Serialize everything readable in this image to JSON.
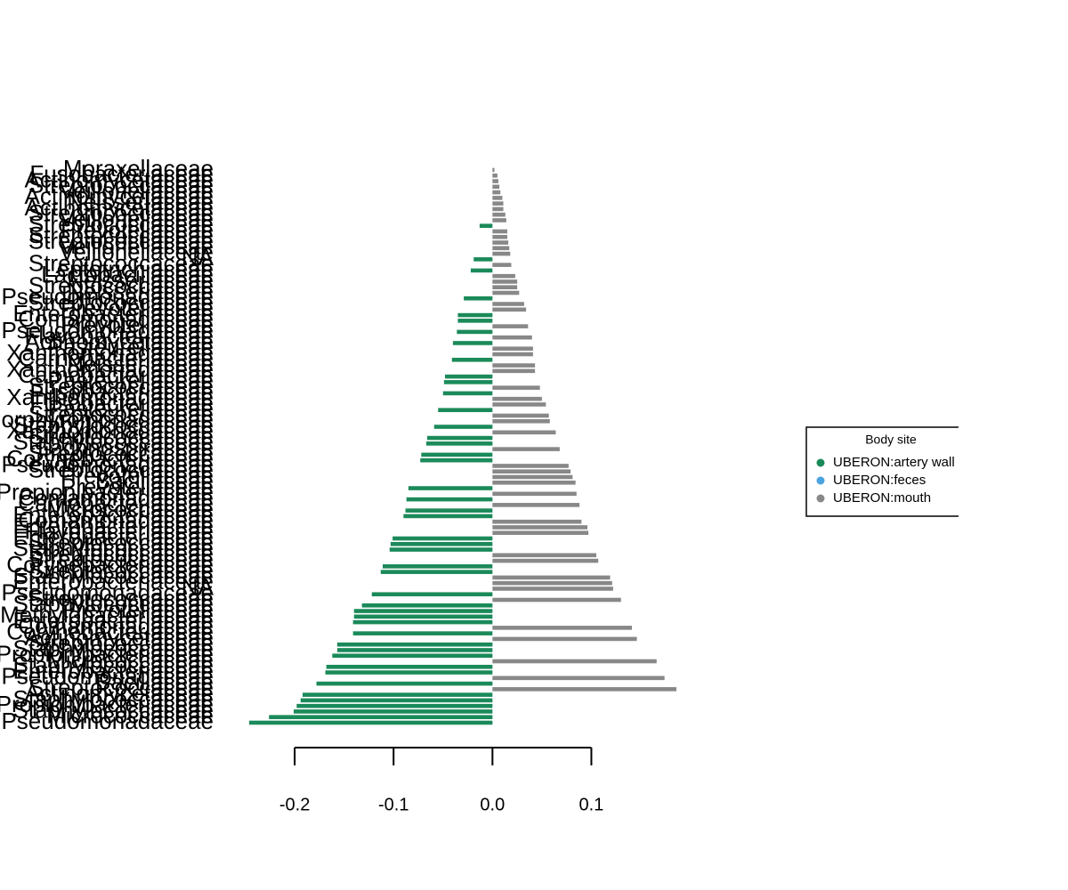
{
  "chart_data": {
    "type": "barh",
    "categories": [
      "Moraxellaceae",
      "Fusobacteriaceae",
      "Actinomycetaceae",
      "Streptococcaceae",
      "Veillonellaceae",
      "Actinomycetaceae",
      "Neisseriaceae",
      "Actinomycetaceae",
      "Streptococcaceae",
      "Veillonellaceae",
      "Streptococcaceae",
      "Prevotellaceae",
      "Streptococcaceae",
      "Streptococcaceae",
      "Veillonellaceae",
      "Veillonellaceae",
      "NA",
      "Streptococcaceae",
      "Leptotrichiaceae",
      "Lactobacillaceae",
      "Neisseriaceae",
      "Streptococcaceae",
      "Neisseriaceae",
      "Pseudomonadaceae",
      "Streptococcaceae",
      "Prevotellaceae",
      "Enterobacteriaceae",
      "Comamonadaceae",
      "Prevotellaceae",
      "Pseudomonadaceae",
      "Flavobacteriaceae",
      "Actinomycetaceae",
      "Pasteurellaceae",
      "Xanthomonadaceae",
      "Carnobacteriaceae",
      "Neisseriaceae",
      "Xanthomonadaceae",
      "Carnobacteriaceae",
      "Pasteurellaceae",
      "Streptococcaceae",
      "Fusobacteriaceae",
      "Xanthomonadaceae",
      "Fusobacteriaceae",
      "Pasteurellaceae",
      "Streptococcaceae",
      "Porphyromonadaceae",
      "Staphylococcaceae",
      "Xanthomonadaceae",
      "Streptococcaceae",
      "Staphylococcaceae",
      "Lachnospiraceae",
      "Streptococcaceae",
      "Corynebacteriaceae",
      "Pseudomonadaceae",
      "Streptococcaceae",
      "Prevotellaceae",
      "Bacillaceae",
      "Prevotellaceae",
      "Propionibacteriaceae",
      "Comamonadaceae",
      "Carnobacteriaceae",
      "Micrococcaceae",
      "Enterobacteriaceae",
      "Comamonadaceae",
      "Enterobacteriaceae",
      "Flavobacteriaceae",
      "Enterobacteriaceae",
      "Streptococcaceae",
      "Staphylococcaceae",
      "Streptococcaceae",
      "Streptococcaceae",
      "Corynebacteriaceae",
      "Streptococcaceae",
      "Staphylococcaceae",
      "Enterobacteriaceae",
      "NA",
      "Pseudomonadaceae",
      "Streptococcaceae",
      "Staphylococcaceae",
      "Prevotellaceae",
      "Methylobacteriaceae",
      "Enterobacteriaceae",
      "Comamonadaceae",
      "Corynebacteriaceae",
      "Actinomycetaceae",
      "Streptococcaceae",
      "Staphylococcaceae",
      "Propionibacteriaceae",
      "Micrococcaceae",
      "Staphylococcaceae",
      "Enterobacteriaceae",
      "Pseudomonadaceae",
      "Bacillaceae",
      "Streptococcaceae",
      "Actinomycetaceae",
      "Staphylococcaceae",
      "Propionibacteriaceae",
      "Staphylococcaceae",
      "Micrococcaceae",
      "Pseudomonadaceae"
    ],
    "series": [
      {
        "name": "UBERON:artery wall",
        "color": "#1b8a5a",
        "values": [
          null,
          null,
          null,
          null,
          null,
          null,
          null,
          null,
          null,
          null,
          -0.013,
          null,
          null,
          null,
          null,
          null,
          -0.019,
          null,
          -0.022,
          null,
          null,
          null,
          null,
          -0.029,
          null,
          null,
          -0.035,
          -0.035,
          null,
          -0.036,
          null,
          -0.04,
          null,
          null,
          -0.041,
          null,
          null,
          -0.048,
          -0.049,
          null,
          -0.05,
          null,
          null,
          -0.055,
          null,
          null,
          -0.059,
          null,
          -0.066,
          -0.067,
          null,
          -0.072,
          -0.073,
          null,
          null,
          null,
          null,
          -0.085,
          null,
          -0.087,
          null,
          -0.088,
          -0.09,
          null,
          null,
          null,
          -0.101,
          -0.103,
          -0.104,
          null,
          null,
          -0.111,
          -0.113,
          null,
          null,
          null,
          -0.122,
          null,
          -0.132,
          -0.14,
          -0.14,
          -0.141,
          null,
          -0.141,
          null,
          -0.157,
          -0.157,
          -0.162,
          null,
          -0.168,
          -0.169,
          null,
          -0.178,
          null,
          -0.192,
          -0.194,
          -0.198,
          -0.201,
          -0.226,
          -0.246
        ]
      },
      {
        "name": "UBERON:feces",
        "color": "#4aa3df",
        "values": [
          null,
          null,
          null,
          null,
          null,
          null,
          null,
          null,
          null,
          null,
          null,
          null,
          null,
          null,
          null,
          null,
          null,
          null,
          null,
          null,
          null,
          null,
          null,
          null,
          null,
          null,
          null,
          null,
          null,
          null,
          null,
          null,
          null,
          null,
          null,
          null,
          null,
          null,
          null,
          null,
          null,
          null,
          null,
          null,
          null,
          null,
          null,
          null,
          null,
          null,
          null,
          null,
          null,
          null,
          null,
          null,
          null,
          null,
          null,
          null,
          null,
          null,
          null,
          null,
          null,
          null,
          null,
          null,
          null,
          null,
          null,
          null,
          null,
          null,
          null,
          null,
          null,
          null,
          null,
          null,
          null,
          null,
          null,
          null,
          null,
          null,
          null,
          null,
          null,
          null,
          null,
          null,
          null,
          null,
          null,
          null,
          null,
          null,
          null,
          null
        ]
      },
      {
        "name": "UBERON:mouth",
        "color": "#888888",
        "values": [
          0.002,
          0.005,
          0.006,
          0.007,
          0.008,
          0.01,
          0.011,
          0.011,
          0.013,
          0.014,
          null,
          0.015,
          0.015,
          0.016,
          0.017,
          0.018,
          null,
          0.019,
          null,
          0.023,
          0.025,
          0.025,
          0.027,
          null,
          0.032,
          0.034,
          null,
          null,
          0.036,
          null,
          0.04,
          null,
          0.041,
          0.041,
          null,
          0.043,
          0.043,
          null,
          null,
          0.048,
          null,
          0.05,
          0.054,
          null,
          0.057,
          0.058,
          null,
          0.064,
          null,
          null,
          0.068,
          null,
          null,
          0.077,
          0.079,
          0.081,
          0.084,
          null,
          0.085,
          null,
          0.088,
          null,
          null,
          0.09,
          0.096,
          0.097,
          null,
          null,
          null,
          0.105,
          0.107,
          null,
          null,
          0.119,
          0.121,
          0.122,
          null,
          0.13,
          null,
          null,
          null,
          null,
          0.141,
          null,
          0.146,
          null,
          null,
          null,
          0.166,
          null,
          null,
          0.174,
          null,
          0.186,
          null,
          null,
          null,
          null,
          null,
          null
        ]
      }
    ],
    "xlim": [
      -0.246,
      0.186
    ],
    "xticks": [
      -0.2,
      -0.1,
      {
        "value": 0,
        "label": "0.0"
      },
      0.1
    ],
    "legend_title": "Body site",
    "legend": "right"
  }
}
